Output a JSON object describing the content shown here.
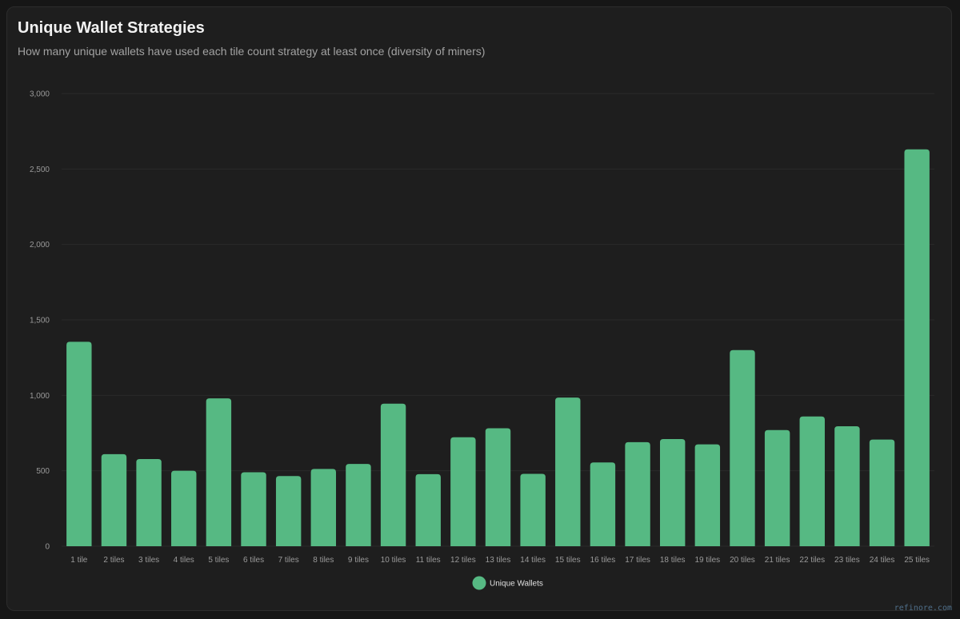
{
  "header": {
    "title": "Unique Wallet Strategies",
    "subtitle": "How many unique wallets have used each tile count strategy at least once (diversity of miners)"
  },
  "footer": {
    "watermark": "refinore.com"
  },
  "colors": {
    "bar": "#56b983",
    "grid": "#2a2a2a",
    "tick_text": "#9a9a9a",
    "legend_text": "#e0e0e0"
  },
  "chart_data": {
    "type": "bar",
    "title": "Unique Wallet Strategies",
    "subtitle": "How many unique wallets have used each tile count strategy at least once (diversity of miners)",
    "xlabel": "",
    "ylabel": "",
    "ylim": [
      0,
      3000
    ],
    "yticks": [
      0,
      500,
      1000,
      1500,
      2000,
      2500,
      3000
    ],
    "ytick_labels": [
      "0",
      "500",
      "1,000",
      "1,500",
      "2,000",
      "2,500",
      "3,000"
    ],
    "grid": true,
    "legend_position": "bottom-center",
    "categories": [
      "1 tile",
      "2 tiles",
      "3 tiles",
      "4 tiles",
      "5 tiles",
      "6 tiles",
      "7 tiles",
      "8 tiles",
      "9 tiles",
      "10 tiles",
      "11 tiles",
      "12 tiles",
      "13 tiles",
      "14 tiles",
      "15 tiles",
      "16 tiles",
      "17 tiles",
      "18 tiles",
      "19 tiles",
      "20 tiles",
      "21 tiles",
      "22 tiles",
      "23 tiles",
      "24 tiles",
      "25 tiles"
    ],
    "series": [
      {
        "name": "Unique Wallets",
        "color": "#56b983",
        "values": [
          1355,
          610,
          578,
          500,
          980,
          490,
          465,
          512,
          545,
          945,
          478,
          722,
          782,
          480,
          985,
          555,
          690,
          710,
          675,
          1300,
          770,
          860,
          795,
          707,
          2630
        ]
      }
    ]
  }
}
